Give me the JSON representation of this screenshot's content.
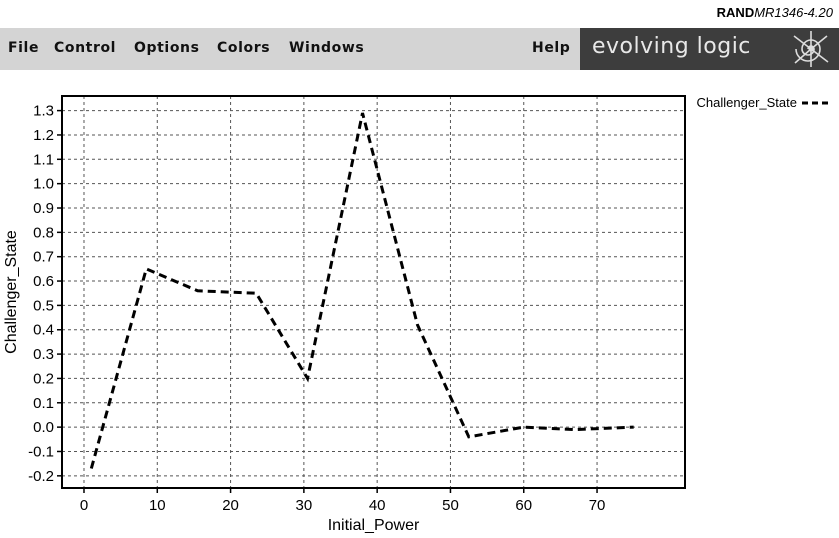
{
  "source_label": {
    "bold": "RAND",
    "italic": "MR1346-4.20"
  },
  "menubar": {
    "items": [
      "File",
      "Control",
      "Options",
      "Colors",
      "Windows"
    ],
    "help_label": "Help",
    "brand_text": "evolving logic",
    "brand_logo_icon": "spiral-logo-icon"
  },
  "chart_data": {
    "type": "line",
    "xlabel": "Initial_Power",
    "ylabel": "Challenger_State",
    "xlim": [
      -3,
      82
    ],
    "ylim": [
      -0.25,
      1.36
    ],
    "xticks": [
      0,
      10,
      20,
      30,
      40,
      50,
      60,
      70
    ],
    "yticks": [
      -0.2,
      -0.1,
      0.0,
      0.1,
      0.2,
      0.3,
      0.4,
      0.5,
      0.6,
      0.7,
      0.8,
      0.9,
      1.0,
      1.1,
      1.2,
      1.3
    ],
    "grid": true,
    "legend_position": "top-right-outside",
    "series": [
      {
        "name": "Challenger_State",
        "line_style": "dashed",
        "color": "#000000",
        "x": [
          1,
          8.5,
          15.5,
          23.5,
          30.5,
          38,
          45.5,
          52.5,
          60,
          67,
          75
        ],
        "y": [
          -0.17,
          0.65,
          0.56,
          0.55,
          0.2,
          1.29,
          0.42,
          -0.04,
          0.0,
          -0.01,
          0.0
        ]
      }
    ]
  }
}
